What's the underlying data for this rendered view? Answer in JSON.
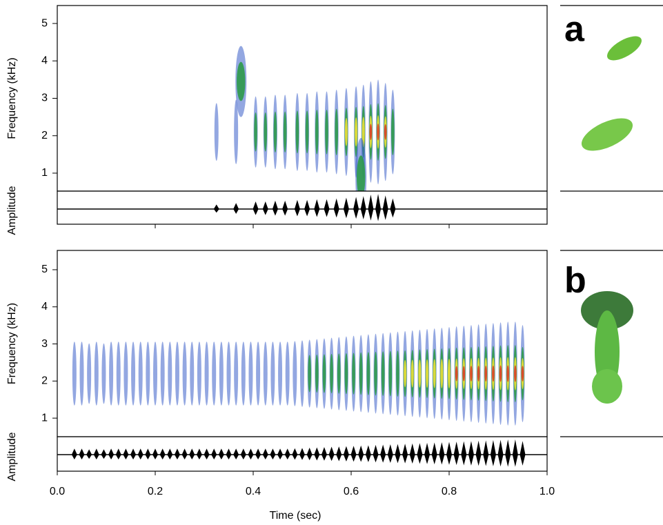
{
  "chart_data": [
    {
      "type": "spectrogram",
      "label": "a",
      "ylabel": "Frequency (kHz)",
      "amp_label": "Amplitude",
      "xlim": [
        0,
        1
      ],
      "xticks": [
        0.2,
        0.4,
        0.6,
        0.8
      ],
      "ylim": [
        0.52,
        5.48
      ],
      "yticks": [
        1,
        2,
        3,
        4,
        5
      ],
      "frequency": 2.1,
      "pulses": {
        "x": [
          0.325,
          0.365,
          0.405,
          0.425,
          0.445,
          0.465,
          0.49,
          0.51,
          0.53,
          0.55,
          0.57,
          0.59,
          0.61,
          0.625,
          0.64,
          0.655,
          0.67,
          0.685
        ],
        "intensity": [
          0.3,
          0.4,
          0.5,
          0.5,
          0.55,
          0.55,
          0.6,
          0.6,
          0.65,
          0.65,
          0.7,
          0.75,
          0.8,
          0.85,
          0.95,
          1,
          0.9,
          0.7
        ]
      },
      "bands": {
        "x": [
          0.375,
          0.62
        ],
        "y": [
          3.45,
          0.9
        ],
        "intensity": [
          0.5,
          0.6
        ]
      }
    },
    {
      "type": "spectrogram",
      "label": "b",
      "ylabel": "Frequency (kHz)",
      "amp_label": "Amplitude",
      "xlabel": "Time (sec)",
      "xlim": [
        0,
        1
      ],
      "xticks": [
        {
          "value": 0,
          "label": "0.0"
        },
        0.2,
        0.4,
        0.6,
        0.8,
        {
          "value": 1,
          "label": "1.0"
        }
      ],
      "ylim": [
        0.5,
        5.52
      ],
      "yticks": [
        1,
        2,
        3,
        4,
        5
      ],
      "frequency": 2.2,
      "pulses": {
        "x": [
          0.035,
          0.05,
          0.065,
          0.08,
          0.095,
          0.11,
          0.125,
          0.14,
          0.155,
          0.17,
          0.185,
          0.2,
          0.215,
          0.23,
          0.245,
          0.26,
          0.275,
          0.29,
          0.305,
          0.32,
          0.335,
          0.35,
          0.365,
          0.38,
          0.395,
          0.41,
          0.425,
          0.44,
          0.455,
          0.47,
          0.485,
          0.5,
          0.515,
          0.53,
          0.545,
          0.56,
          0.575,
          0.59,
          0.605,
          0.62,
          0.635,
          0.65,
          0.665,
          0.68,
          0.695,
          0.71,
          0.725,
          0.74,
          0.755,
          0.77,
          0.785,
          0.8,
          0.815,
          0.83,
          0.845,
          0.86,
          0.875,
          0.89,
          0.905,
          0.92,
          0.935,
          0.95
        ],
        "intensity": [
          0.4,
          0.4,
          0.35,
          0.4,
          0.35,
          0.4,
          0.4,
          0.4,
          0.4,
          0.4,
          0.4,
          0.4,
          0.4,
          0.4,
          0.4,
          0.4,
          0.4,
          0.4,
          0.4,
          0.4,
          0.4,
          0.4,
          0.4,
          0.4,
          0.4,
          0.4,
          0.4,
          0.4,
          0.4,
          0.4,
          0.42,
          0.44,
          0.46,
          0.48,
          0.5,
          0.52,
          0.54,
          0.56,
          0.58,
          0.6,
          0.62,
          0.64,
          0.66,
          0.68,
          0.7,
          0.72,
          0.74,
          0.76,
          0.78,
          0.8,
          0.82,
          0.84,
          0.86,
          0.88,
          0.9,
          0.92,
          0.94,
          0.96,
          0.98,
          1,
          1,
          0.9
        ]
      },
      "bands": {
        "x": [],
        "y": [],
        "intensity": []
      }
    }
  ]
}
